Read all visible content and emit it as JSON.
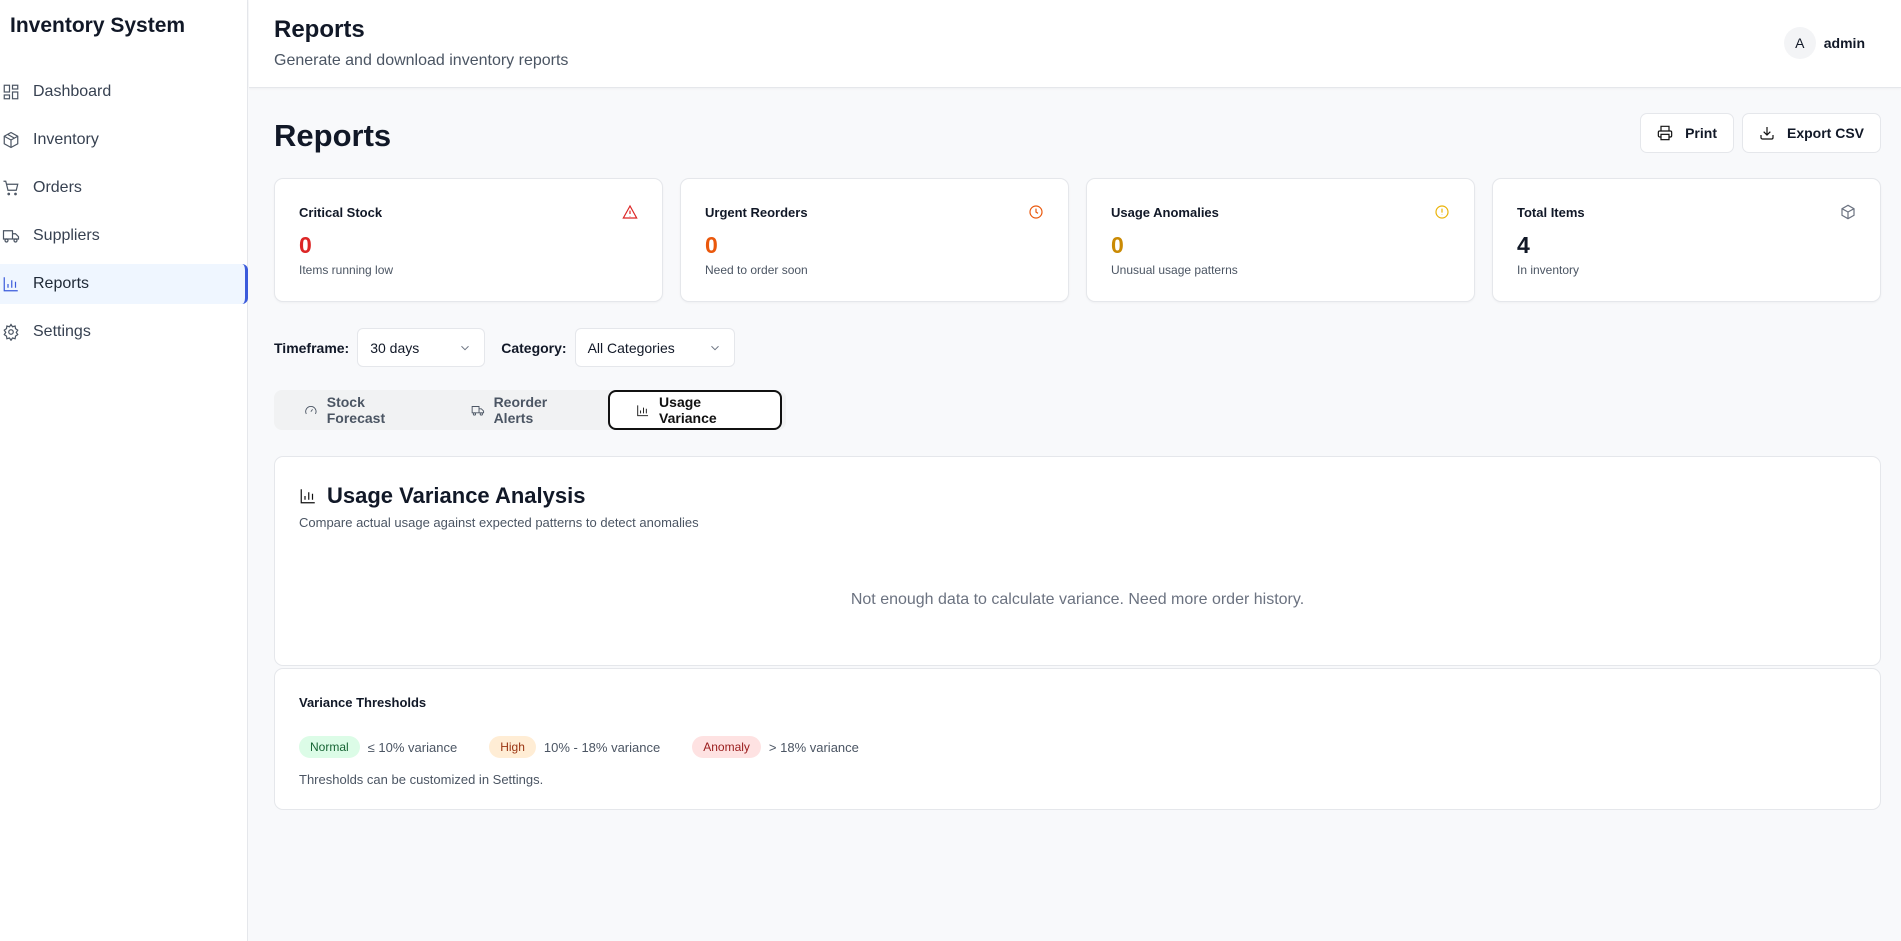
{
  "app_title": "Inventory System",
  "sidebar": {
    "items": [
      {
        "label": "Dashboard",
        "icon": "grid-icon"
      },
      {
        "label": "Inventory",
        "icon": "package-icon"
      },
      {
        "label": "Orders",
        "icon": "cart-icon"
      },
      {
        "label": "Suppliers",
        "icon": "truck-icon"
      },
      {
        "label": "Reports",
        "icon": "bar-chart-icon",
        "active": true
      },
      {
        "label": "Settings",
        "icon": "gear-icon"
      }
    ]
  },
  "header": {
    "title": "Reports",
    "subtitle": "Generate and download inventory reports",
    "user_initial": "A",
    "user_name": "admin"
  },
  "main": {
    "title": "Reports",
    "actions": {
      "print": "Print",
      "export": "Export CSV"
    },
    "cards": [
      {
        "title": "Critical Stock",
        "value": "0",
        "sub": "Items running low",
        "color": "#dc2626",
        "icon": "alert-triangle-icon"
      },
      {
        "title": "Urgent Reorders",
        "value": "0",
        "sub": "Need to order soon",
        "color": "#ea580c",
        "icon": "clock-icon"
      },
      {
        "title": "Usage Anomalies",
        "value": "0",
        "sub": "Unusual usage patterns",
        "color": "#ca8a04",
        "icon": "alert-circle-icon"
      },
      {
        "title": "Total Items",
        "value": "4",
        "sub": "In inventory",
        "color": "#111827",
        "icon": "package-icon"
      }
    ],
    "filters": {
      "timeframe_label": "Timeframe:",
      "timeframe_value": "30 days",
      "category_label": "Category:",
      "category_value": "All Categories"
    },
    "tabs": [
      {
        "label": "Stock Forecast"
      },
      {
        "label": "Reorder Alerts"
      },
      {
        "label": "Usage Variance",
        "active": true
      }
    ],
    "analysis": {
      "title": "Usage Variance Analysis",
      "subtitle": "Compare actual usage against expected patterns to detect anomalies",
      "empty": "Not enough data to calculate variance. Need more order history."
    },
    "thresholds": {
      "title": "Variance Thresholds",
      "items": [
        {
          "badge": "Normal",
          "text": "≤ 10% variance",
          "bg": "#dcfce7",
          "fg": "#166534"
        },
        {
          "badge": "High",
          "text": "10% - 18% variance",
          "bg": "#ffedd5",
          "fg": "#9a3412"
        },
        {
          "badge": "Anomaly",
          "text": "> 18% variance",
          "bg": "#fee2e2",
          "fg": "#991b1b"
        }
      ],
      "note": "Thresholds can be customized in Settings."
    }
  }
}
